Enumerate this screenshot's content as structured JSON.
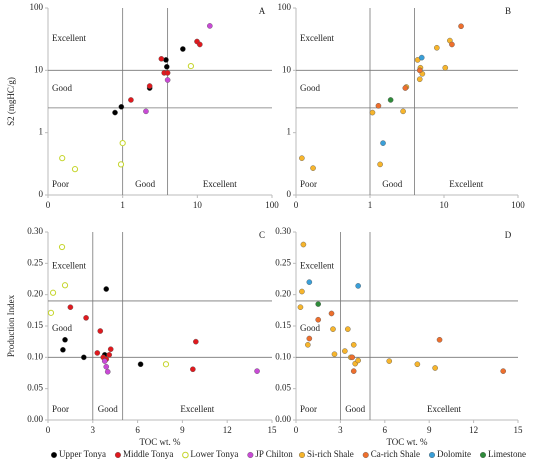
{
  "chart_data": [
    {
      "type": "scatter",
      "label": "A",
      "log": true,
      "ylabel": "S2 (mgHC/g)",
      "xlim": [
        0.1,
        100
      ],
      "xticks": [
        {
          "value": 0.1,
          "label": "0"
        },
        1,
        10,
        100
      ],
      "ylim": [
        0.1,
        100
      ],
      "yticks": [
        {
          "value": 0.1,
          "label": "0"
        },
        1,
        10,
        100
      ],
      "xlines": [
        1,
        4
      ],
      "ylines": [
        2.5,
        10
      ],
      "zones": {
        "y_high": "Excellent",
        "y_mid": "Good",
        "y_low": "Poor",
        "x_mid": "Good",
        "x_high": "Excellent"
      },
      "series": [
        {
          "color": "#000000",
          "x": [
            0.79,
            0.96,
            2.3,
            3.8,
            3.9,
            6.4
          ],
          "values": [
            2.1,
            2.6,
            5.2,
            14.7,
            11.4,
            22
          ]
        },
        {
          "color": "#e0191e",
          "x": [
            1.29,
            2.3,
            3.3,
            3.6,
            4.0,
            9.9,
            10.8
          ],
          "values": [
            3.35,
            5.6,
            15.3,
            9.1,
            9.1,
            29,
            26
          ]
        },
        {
          "color": "#c5d52c",
          "hollow": true,
          "x": [
            0.155,
            0.23,
            0.95,
            1.0,
            8.2
          ],
          "values": [
            0.39,
            0.26,
            0.31,
            0.68,
            11.7
          ]
        },
        {
          "color": "#c94ad6",
          "x": [
            2.05,
            4.0,
            14.7
          ],
          "values": [
            2.2,
            7.0,
            51.6
          ]
        }
      ]
    },
    {
      "type": "scatter",
      "label": "B",
      "log": true,
      "xlim": [
        0.1,
        100
      ],
      "xticks": [
        {
          "value": 0.1,
          "label": "0"
        },
        1,
        10,
        100
      ],
      "ylim": [
        0.1,
        100
      ],
      "yticks": [
        {
          "value": 0.1,
          "label": "0"
        },
        1,
        10,
        100
      ],
      "xlines": [
        1,
        4
      ],
      "ylines": [
        2.5,
        10
      ],
      "zones": {
        "y_high": "Excellent",
        "y_mid": "Good",
        "y_low": "Poor",
        "x_mid": "Good",
        "x_high": "Excellent"
      },
      "series": [
        {
          "color": "#f7b52c",
          "x": [
            0.12,
            0.17,
            1.08,
            1.37,
            2.8,
            3.1,
            4.4,
            4.8,
            5.1,
            4.7,
            8.0,
            10.4,
            12
          ],
          "values": [
            0.39,
            0.27,
            2.1,
            0.31,
            2.2,
            5.4,
            14.7,
            11,
            8.8,
            7.2,
            23,
            11,
            30
          ]
        },
        {
          "color": "#ee6f2d",
          "x": [
            1.3,
            3.0,
            4.7,
            12.8,
            17
          ],
          "values": [
            2.7,
            5.2,
            10,
            26,
            51
          ]
        },
        {
          "color": "#3a9fd8",
          "x": [
            1.5,
            5
          ],
          "values": [
            0.68,
            16
          ]
        },
        {
          "color": "#2e8b3a",
          "x": [
            1.9
          ],
          "values": [
            3.35
          ]
        }
      ]
    },
    {
      "type": "scatter",
      "label": "C",
      "log": false,
      "ylabel": "Production Index",
      "xlabel": "TOC wt. %",
      "legend": "bottom",
      "xlim": [
        0,
        15
      ],
      "xticks": [
        0,
        3,
        6,
        9,
        12,
        15
      ],
      "ylim": [
        0,
        0.3
      ],
      "yticks": [
        {
          "value": 0,
          "label": "0.00"
        },
        0.05,
        {
          "value": 0.1,
          "label": "0.10"
        },
        0.15,
        {
          "value": 0.2,
          "label": "0.20"
        },
        0.25,
        {
          "value": 0.3,
          "label": "0.30"
        }
      ],
      "xlines": [
        3,
        5
      ],
      "ylines": [
        0.1,
        0.19
      ],
      "zones": {
        "y_high": "Excellent",
        "y_mid": "Good",
        "y_low": "Poor",
        "x_mid": "Good",
        "x_high": "Excellent"
      },
      "series": [
        {
          "name": "Upper Tonya",
          "color": "#000000",
          "x": [
            1.0,
            1.14,
            2.4,
            3.9,
            3.8,
            6.2
          ],
          "values": [
            0.112,
            0.128,
            0.1,
            0.209,
            0.104,
            0.089
          ]
        },
        {
          "name": "Middle Tonya",
          "color": "#e0191e",
          "x": [
            1.5,
            2.55,
            3.3,
            3.5,
            3.7,
            3.9,
            4.1,
            4.2,
            9.7,
            9.9
          ],
          "values": [
            0.18,
            0.163,
            0.107,
            0.142,
            0.1,
            0.097,
            0.104,
            0.113,
            0.081,
            0.125
          ]
        },
        {
          "name": "Lower Tonya",
          "color": "#c5d52c",
          "hollow": true,
          "x": [
            0.2,
            0.34,
            0.94,
            1.14,
            7.9
          ],
          "values": [
            0.171,
            0.203,
            0.276,
            0.215,
            0.089
          ]
        },
        {
          "name": "JP Chilton",
          "color": "#c94ad6",
          "x": [
            3.8,
            3.9,
            4.0,
            14.0
          ],
          "values": [
            0.094,
            0.085,
            0.077,
            0.078
          ]
        }
      ]
    },
    {
      "type": "scatter",
      "label": "D",
      "log": false,
      "xlabel": "TOC wt. %",
      "legend": "bottom",
      "xlim": [
        0,
        15
      ],
      "xticks": [
        0,
        3,
        6,
        9,
        12,
        15
      ],
      "ylim": [
        0,
        0.3
      ],
      "yticks": [
        {
          "value": 0,
          "label": "0.00"
        },
        0.05,
        {
          "value": 0.1,
          "label": "0.10"
        },
        0.15,
        {
          "value": 0.2,
          "label": "0.20"
        },
        0.25,
        {
          "value": 0.3,
          "label": "0.30"
        }
      ],
      "xlines": [
        3,
        5
      ],
      "ylines": [
        0.1,
        0.19
      ],
      "zones": {
        "y_high": "Excellent",
        "y_mid": "Good",
        "y_low": "Poor",
        "x_mid": "Good",
        "x_high": "Excellent"
      },
      "series": [
        {
          "name": "Si-rich Shale",
          "color": "#f7b52c",
          "x": [
            0.3,
            0.4,
            0.5,
            0.8,
            2.5,
            2.6,
            3.5,
            3.3,
            3.9,
            4.0,
            4.2,
            6.3,
            8.2,
            9.4,
            3.7
          ],
          "values": [
            0.18,
            0.205,
            0.28,
            0.12,
            0.145,
            0.105,
            0.145,
            0.11,
            0.12,
            0.09,
            0.095,
            0.094,
            0.089,
            0.083,
            0.1
          ]
        },
        {
          "name": "Ca-rich Shale",
          "color": "#ee6f2d",
          "x": [
            0.9,
            1.5,
            2.4,
            3.8,
            3.9,
            9.7,
            14
          ],
          "values": [
            0.13,
            0.16,
            0.17,
            0.1,
            0.078,
            0.128,
            0.078
          ]
        },
        {
          "name": "Dolomite",
          "color": "#3a9fd8",
          "x": [
            0.9,
            4.2
          ],
          "values": [
            0.22,
            0.214
          ]
        },
        {
          "name": "Limestone",
          "color": "#2e8b3a",
          "x": [
            1.5
          ],
          "values": [
            0.185
          ]
        }
      ]
    }
  ]
}
